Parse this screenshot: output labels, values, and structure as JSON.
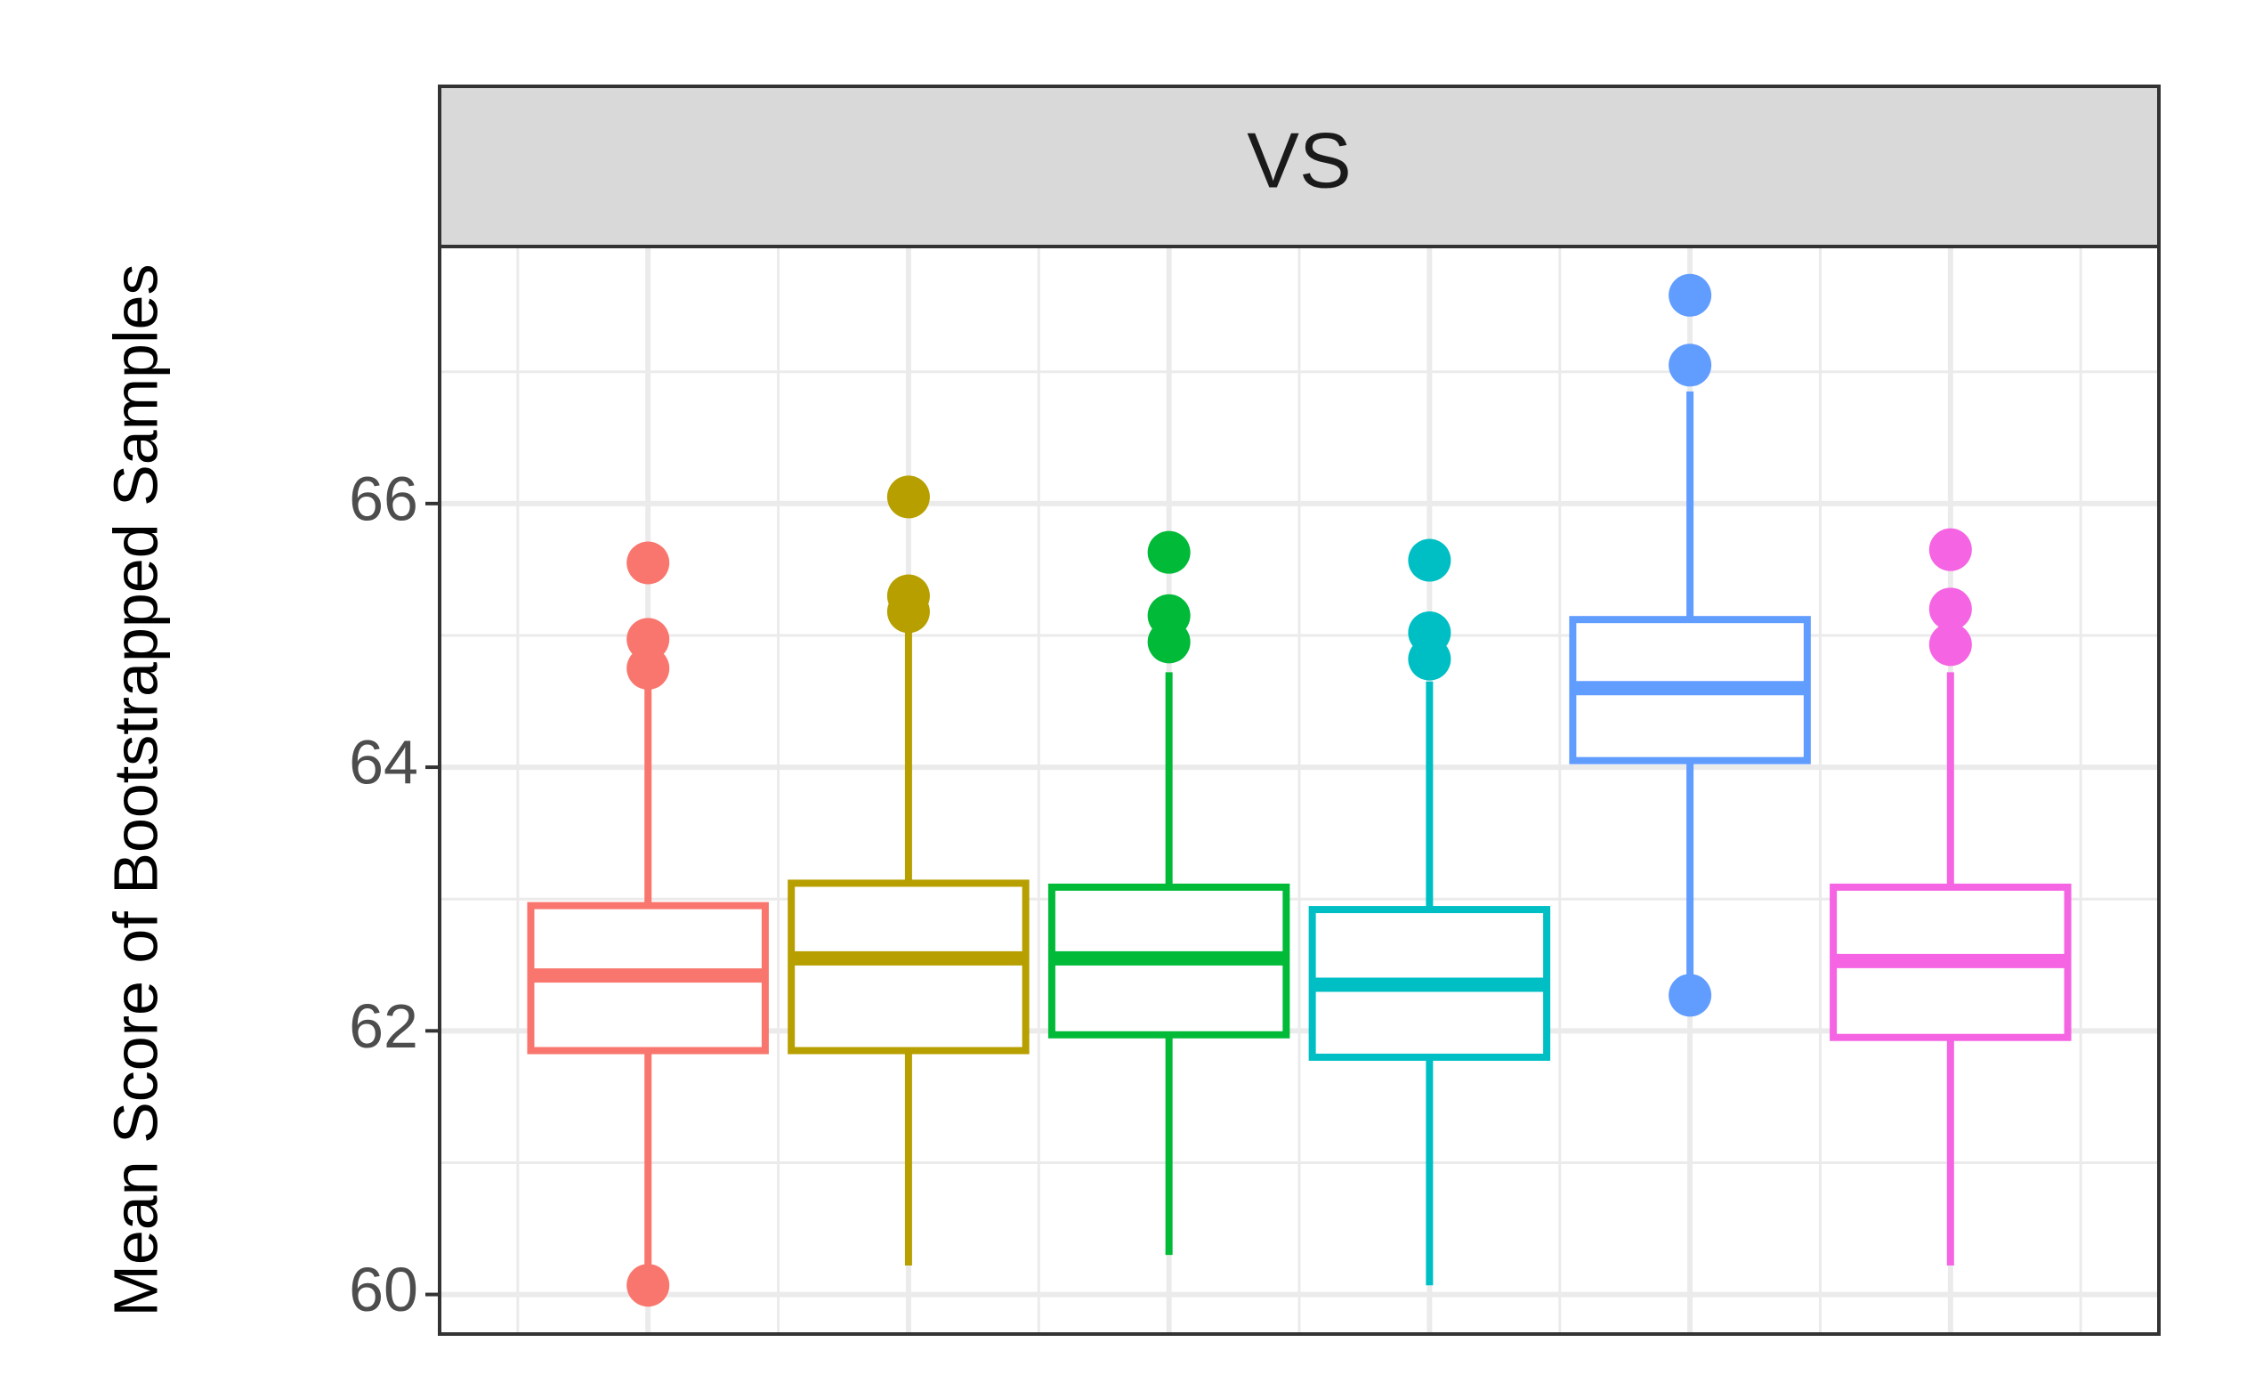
{
  "chart_data": {
    "type": "box",
    "facet": "VS",
    "xlabel": "",
    "ylabel": "Mean Score of Bootstrapped Samples",
    "ylim": [
      59.7,
      67.95
    ],
    "yticks": [
      60,
      62,
      64,
      66
    ],
    "ytick_labels": [
      "60",
      "62",
      "64",
      "66"
    ],
    "grid": true,
    "theme": "bw",
    "series": [
      {
        "color": "#F8766D",
        "lower_whisker": 60.1,
        "q1": 61.85,
        "median": 62.42,
        "q3": 62.95,
        "upper_whisker": 64.7,
        "outliers": [
          60.07,
          64.75,
          64.97,
          65.55
        ]
      },
      {
        "color": "#B79F00",
        "lower_whisker": 60.22,
        "q1": 61.85,
        "median": 62.55,
        "q3": 63.12,
        "upper_whisker": 65.1,
        "outliers": [
          65.18,
          65.3,
          66.05
        ]
      },
      {
        "color": "#00BA38",
        "lower_whisker": 60.3,
        "q1": 61.97,
        "median": 62.55,
        "q3": 63.09,
        "upper_whisker": 64.72,
        "outliers": [
          64.95,
          65.15,
          65.63
        ]
      },
      {
        "color": "#00BFC4",
        "lower_whisker": 60.07,
        "q1": 61.8,
        "median": 62.35,
        "q3": 62.92,
        "upper_whisker": 64.65,
        "outliers": [
          64.82,
          65.02,
          65.57
        ]
      },
      {
        "color": "#619CFF",
        "lower_whisker": 62.3,
        "q1": 64.05,
        "median": 64.6,
        "q3": 65.12,
        "upper_whisker": 66.85,
        "outliers": [
          62.27,
          67.05,
          67.58
        ]
      },
      {
        "color": "#F564E3",
        "lower_whisker": 60.22,
        "q1": 61.95,
        "median": 62.53,
        "q3": 63.09,
        "upper_whisker": 64.72,
        "outliers": [
          64.93,
          65.2,
          65.65
        ]
      }
    ]
  }
}
